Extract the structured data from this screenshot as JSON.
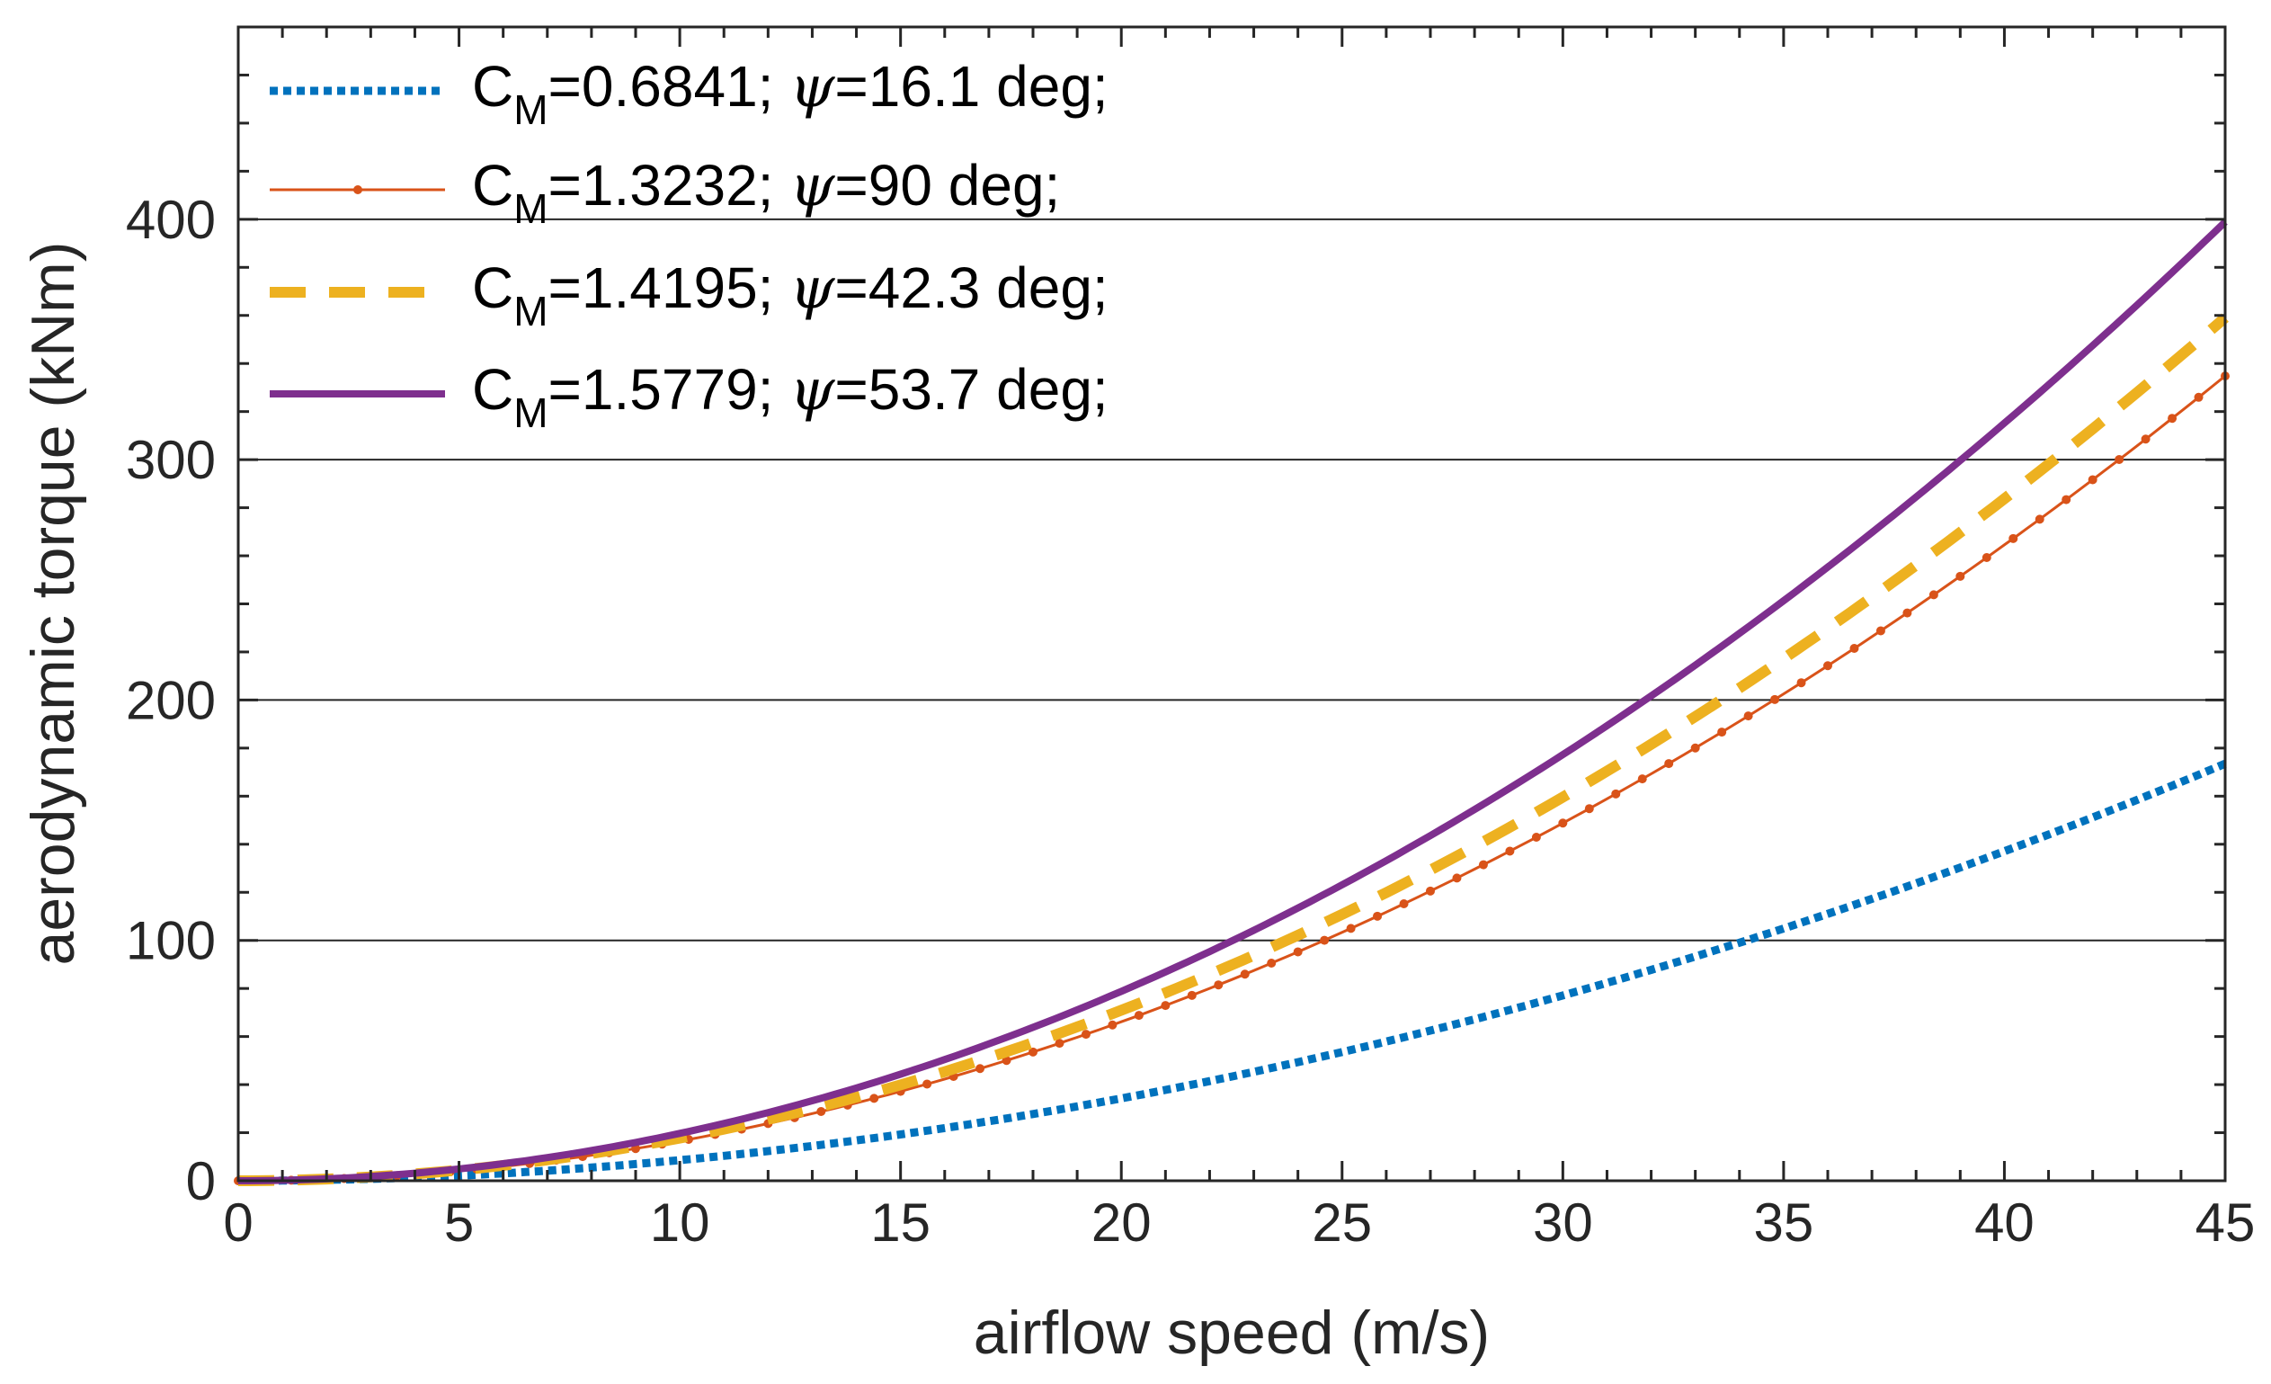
{
  "chart_data": {
    "type": "line",
    "title": "",
    "xlabel": "airflow speed (m/s)",
    "ylabel": "aerodynamic torque (kNm)",
    "xlim": [
      0,
      45
    ],
    "ylim": [
      0,
      480
    ],
    "xticks": [
      0,
      5,
      10,
      15,
      20,
      25,
      30,
      35,
      40,
      45
    ],
    "yticks": [
      0,
      100,
      200,
      300,
      400
    ],
    "xtick_labels": [
      "0",
      "5",
      "10",
      "15",
      "20",
      "25",
      "30",
      "35",
      "40",
      "45"
    ],
    "ytick_labels": [
      "0",
      "100",
      "200",
      "300",
      "400"
    ],
    "grid": "horizontal",
    "legend_position": "top-left",
    "x": [
      0,
      5,
      10,
      15,
      20,
      25,
      30,
      35,
      40,
      45
    ],
    "series": [
      {
        "name": "C_M=0.6841; ψ=16.1 deg;",
        "label_c": "C",
        "label_sub": "M",
        "label_value": "=0.6841; ",
        "label_psi": "ψ",
        "label_rest": "=16.1 deg;",
        "style": "dotted",
        "color": "#0072BD",
        "width": 9,
        "marker": "none",
        "values": [
          0,
          2.1,
          8.6,
          19.3,
          34.3,
          53.6,
          77.1,
          105.0,
          137.1,
          173.5
        ]
      },
      {
        "name": "C_M=1.3232; ψ=90 deg;",
        "label_c": "C",
        "label_sub": "M",
        "label_value": "=1.3232; ",
        "label_psi": "ψ",
        "label_rest": "=90 deg;",
        "style": "solid",
        "color": "#D95319",
        "width": 3,
        "marker": "dot",
        "values": [
          0,
          4.1,
          16.5,
          37.2,
          66.2,
          103.4,
          148.8,
          202.6,
          264.6,
          334.8
        ]
      },
      {
        "name": "C_M=1.4195; ψ=42.3 deg;",
        "label_c": "C",
        "label_sub": "M",
        "label_value": "=1.4195; ",
        "label_psi": "ψ",
        "label_rest": "=42.3 deg;",
        "style": "dashed",
        "color": "#EDB120",
        "width": 12,
        "marker": "none",
        "values": [
          0,
          4.4,
          17.7,
          39.9,
          70.9,
          110.8,
          159.6,
          217.2,
          283.7,
          359.1
        ]
      },
      {
        "name": "C_M=1.5779; ψ=53.7 deg;",
        "label_c": "C",
        "label_sub": "M",
        "label_value": "=1.5779; ",
        "label_psi": "ψ",
        "label_rest": "=53.7 deg;",
        "style": "solid",
        "color": "#7E2F8E",
        "width": 8,
        "marker": "none",
        "values": [
          0,
          4.9,
          19.7,
          44.3,
          78.8,
          123.1,
          177.3,
          241.3,
          315.2,
          398.9
        ]
      }
    ]
  }
}
